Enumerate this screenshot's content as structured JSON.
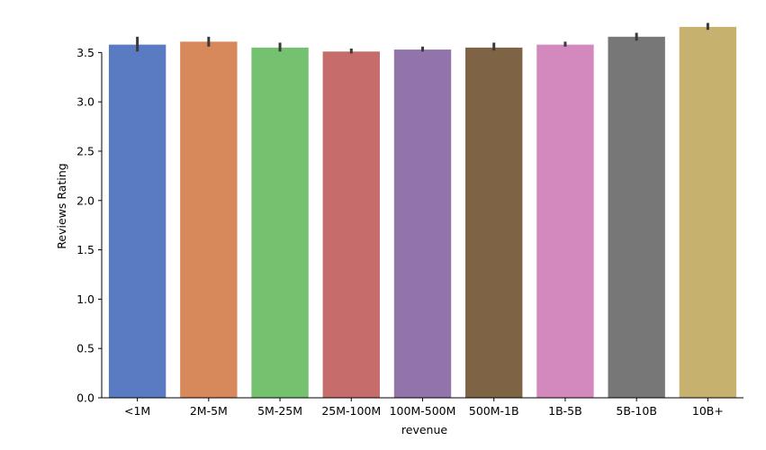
{
  "chart_data": {
    "type": "bar",
    "title": "",
    "xlabel": "revenue",
    "ylabel": "Reviews Rating",
    "ylim": [
      0,
      3.85
    ],
    "yticks": [
      0.0,
      0.5,
      1.0,
      1.5,
      2.0,
      2.5,
      3.0,
      3.5
    ],
    "ytick_labels": [
      "0.0",
      "0.5",
      "1.0",
      "1.5",
      "2.0",
      "2.5",
      "3.0",
      "3.5"
    ],
    "categories": [
      "<1M",
      "2M-5M",
      "5M-25M",
      "25M-100M",
      "100M-500M",
      "500M-1B",
      "1B-5B",
      "5B-10B",
      "10B+"
    ],
    "values": [
      3.58,
      3.61,
      3.55,
      3.51,
      3.53,
      3.55,
      3.58,
      3.66,
      3.76
    ],
    "error_low": [
      3.51,
      3.56,
      3.51,
      3.49,
      3.51,
      3.52,
      3.56,
      3.62,
      3.73
    ],
    "error_high": [
      3.66,
      3.66,
      3.6,
      3.54,
      3.56,
      3.6,
      3.61,
      3.7,
      3.8
    ],
    "colors": [
      "#5a7bc2",
      "#d8895c",
      "#74c170",
      "#c66d6b",
      "#9274ab",
      "#7f6345",
      "#d389bd",
      "#777777",
      "#c7b16f"
    ],
    "error_color": "#3a3a3a",
    "grid": false,
    "spines": [
      "left",
      "bottom"
    ]
  }
}
